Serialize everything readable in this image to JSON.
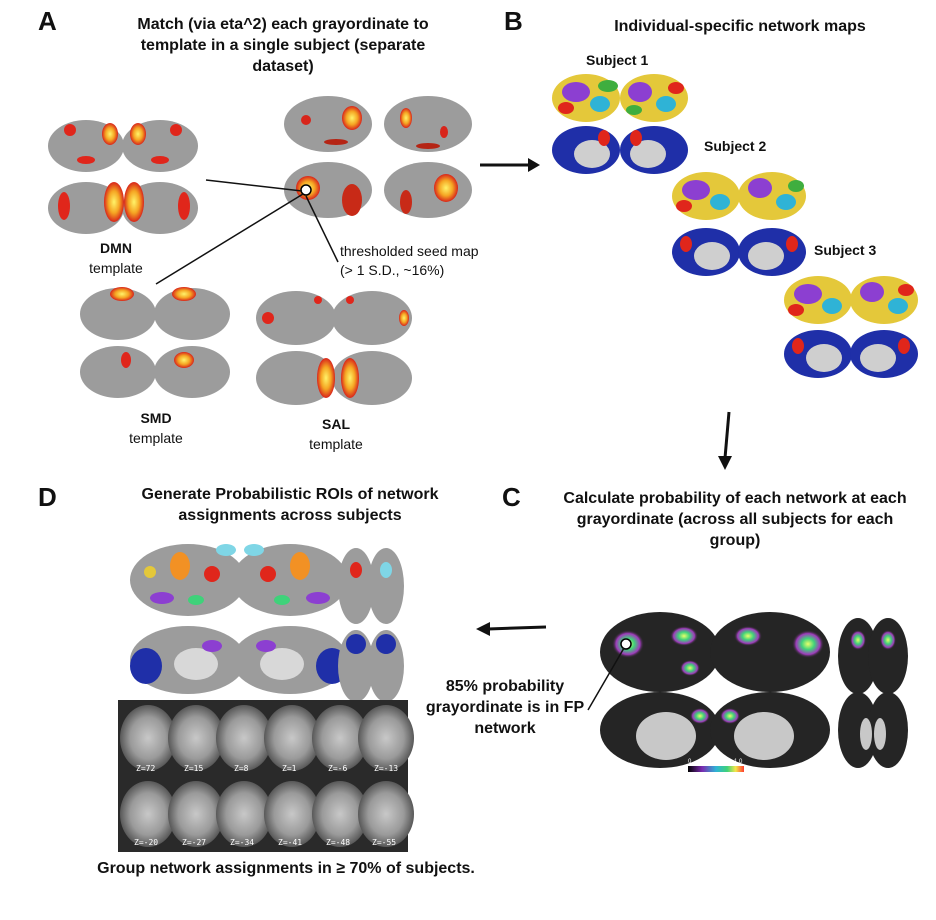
{
  "panels": {
    "a": {
      "letter": "A",
      "title": "Match (via eta^2) each grayordinate to template in a single subject (separate dataset)"
    },
    "b": {
      "letter": "B",
      "title": "Individual-specific network maps"
    },
    "c": {
      "letter": "C",
      "title": "Calculate probability  of each network at each grayordinate (across all subjects for each group)"
    },
    "d": {
      "letter": "D",
      "title": "Generate Probabilistic ROIs of network assignments across subjects"
    }
  },
  "templates": {
    "dmn": {
      "name": "DMN",
      "word": "template"
    },
    "smd": {
      "name": "SMD",
      "word": "template"
    },
    "sal": {
      "name": "SAL",
      "word": "template"
    }
  },
  "seed_map": {
    "line1": "thresholded seed map",
    "line2": "(> 1 S.D., ~16%)"
  },
  "subjects": [
    "Subject 1",
    "Subject 2",
    "Subject 3"
  ],
  "probability_note": "85% probability grayordinate is in FP network",
  "colorbar": {
    "min": "0",
    "max": "1.0"
  },
  "group_note": "Group network assignments in ≥ 70% of subjects.",
  "slices_top": [
    "Z=72",
    "Z=15",
    "Z=8",
    "Z=1",
    "Z=-6",
    "Z=-13"
  ],
  "slices_bottom": [
    "Z=-20",
    "Z=-27",
    "Z=-34",
    "Z=-41",
    "Z=-48",
    "Z=-55"
  ],
  "colors": {
    "heat": "#f5a623",
    "dmn_red": "#e0261b",
    "network_blue": "#1f2fa8",
    "dark_bg": "#222222"
  }
}
